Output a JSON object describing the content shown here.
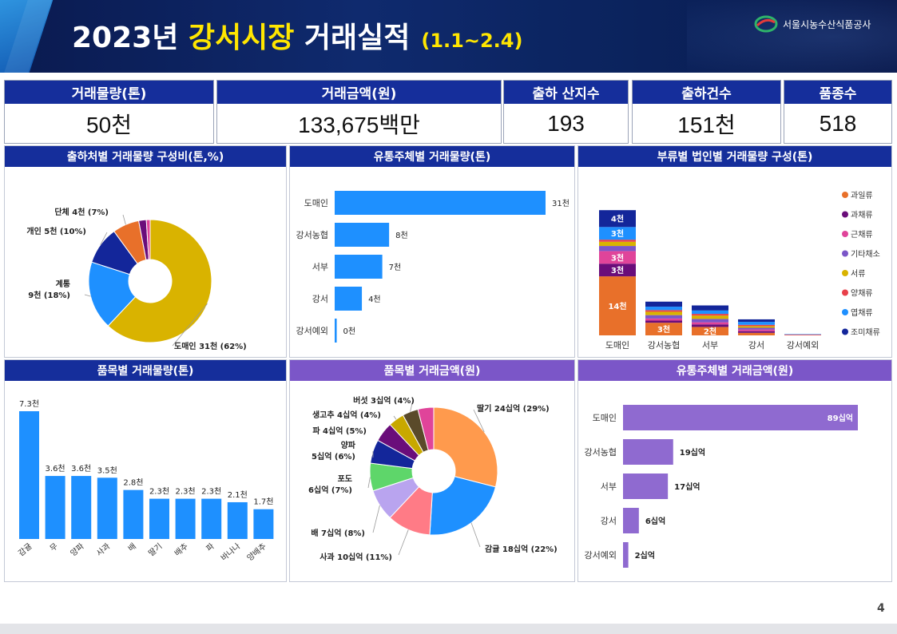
{
  "header": {
    "title_pre": "2023년 ",
    "title_highlight": "강서시장",
    "title_post": " 거래실적",
    "period": "(1.1~2.4)",
    "org": "서울시농수산식품공사"
  },
  "kpis": [
    {
      "label": "거래물량(톤)",
      "value": "50천"
    },
    {
      "label": "거래금액(원)",
      "value": "133,675백만"
    },
    {
      "label": "출하 산지수",
      "value": "193"
    },
    {
      "label": "출하건수",
      "value": "151천"
    },
    {
      "label": "품종수",
      "value": "518"
    }
  ],
  "panels": {
    "p1": "출하처별 거래물량 구성비(톤,%)",
    "p2": "유통주체별 거래물량(톤)",
    "p3": "부류별 법인별 거래물량 구성(톤)",
    "p4": "품목별 거래물량(톤)",
    "p5": "품목별 거래금액(원)",
    "p6": "유통주체별 거래금액(원)"
  },
  "colors": {
    "navy": "#152e9b",
    "purple": "#7b56c8",
    "bar_blue": "#1e90ff",
    "bar_purple": "#8f6ad0"
  },
  "chart_data": [
    {
      "id": "donut1",
      "type": "pie",
      "title": "출하처별 거래물량 구성비(톤,%)",
      "slices": [
        {
          "name": "도매인",
          "label": "도매인 31천 (62%)",
          "value": 62,
          "color": "#d9b300"
        },
        {
          "name": "계통",
          "label": "계통 9천 (18%)",
          "value": 18,
          "color": "#1e90ff"
        },
        {
          "name": "개인",
          "label": "개인 5천 (10%)",
          "value": 10,
          "color": "#13269a"
        },
        {
          "name": "단체",
          "label": "단체 4천 (7%)",
          "value": 7,
          "color": "#e8702a"
        },
        {
          "name": "기타1",
          "label": "",
          "value": 2,
          "color": "#6a0d7a"
        },
        {
          "name": "기타2",
          "label": "",
          "value": 1,
          "color": "#e0449a"
        }
      ]
    },
    {
      "id": "hbar1",
      "type": "bar",
      "orientation": "horizontal",
      "title": "유통주체별 거래물량(톤)",
      "categories": [
        "도매인",
        "강서농협",
        "서부",
        "강서",
        "강서예외"
      ],
      "values": [
        31,
        8,
        7,
        4,
        0.3
      ],
      "labels": [
        "31천",
        "8천",
        "7천",
        "4천",
        "0천"
      ],
      "max": 31
    },
    {
      "id": "stack1",
      "type": "bar",
      "stacked": true,
      "title": "부류별 법인별 거래물량 구성(톤)",
      "categories": [
        "도매인",
        "강서농협",
        "서부",
        "강서",
        "강서예외"
      ],
      "legend": [
        {
          "name": "과일류",
          "color": "#e8702a"
        },
        {
          "name": "과채류",
          "color": "#6a0d7a"
        },
        {
          "name": "근채류",
          "color": "#e0449a"
        },
        {
          "name": "기타채소",
          "color": "#7b56c8"
        },
        {
          "name": "서류",
          "color": "#d9b300"
        },
        {
          "name": "양채류",
          "color": "#e8404a"
        },
        {
          "name": "엽채류",
          "color": "#1e90ff"
        },
        {
          "name": "조미채류",
          "color": "#13269a"
        }
      ],
      "series": [
        {
          "name": "과일류",
          "values": [
            14,
            3,
            2,
            0.6,
            0.1
          ],
          "labels": [
            "14천",
            "3천",
            "2천",
            "",
            ""
          ]
        },
        {
          "name": "과채류",
          "values": [
            3,
            0.5,
            0.6,
            0.4,
            0
          ],
          "labels": [
            "3천",
            "",
            "",
            "",
            ""
          ]
        },
        {
          "name": "근채류",
          "values": [
            3,
            0.5,
            0.5,
            0.4,
            0.1
          ],
          "labels": [
            "3천",
            "",
            "",
            "",
            ""
          ]
        },
        {
          "name": "기타채소",
          "values": [
            1.2,
            0.8,
            0.8,
            0.4,
            0
          ],
          "labels": [
            "",
            "",
            "",
            "",
            ""
          ]
        },
        {
          "name": "서류",
          "values": [
            1.0,
            0.8,
            0.8,
            0.4,
            0
          ],
          "labels": [
            "",
            "",
            "",
            "",
            ""
          ]
        },
        {
          "name": "양채류",
          "values": [
            0.5,
            0.4,
            0.4,
            0.3,
            0
          ],
          "labels": [
            "",
            "",
            "",
            "",
            ""
          ]
        },
        {
          "name": "엽채류",
          "values": [
            3,
            0.8,
            0.8,
            0.7,
            0.1
          ],
          "labels": [
            "3천",
            "",
            "",
            "",
            ""
          ]
        },
        {
          "name": "조미채류",
          "values": [
            4,
            1.2,
            1.2,
            0.6,
            0
          ],
          "labels": [
            "4천",
            "",
            "",
            "",
            ""
          ]
        }
      ]
    },
    {
      "id": "vbar1",
      "type": "bar",
      "title": "품목별 거래물량(톤)",
      "categories": [
        "감귤",
        "무",
        "양파",
        "사과",
        "배",
        "딸기",
        "배추",
        "파",
        "바나나",
        "양배추"
      ],
      "values": [
        7.3,
        3.6,
        3.6,
        3.5,
        2.8,
        2.3,
        2.3,
        2.3,
        2.1,
        1.7
      ],
      "labels": [
        "7.3천",
        "3.6천",
        "3.6천",
        "3.5천",
        "2.8천",
        "2.3천",
        "2.3천",
        "2.3천",
        "2.1천",
        "1.7천"
      ],
      "max": 7.3
    },
    {
      "id": "donut2",
      "type": "pie",
      "title": "품목별 거래금액(원)",
      "slices": [
        {
          "name": "딸기",
          "label": "딸기 24십억 (29%)",
          "value": 29,
          "color": "#ff9a4d"
        },
        {
          "name": "감귤",
          "label": "감귤 18십억 (22%)",
          "value": 22,
          "color": "#1e90ff"
        },
        {
          "name": "사과",
          "label": "사과 10십억 (11%)",
          "value": 11,
          "color": "#ff7b86"
        },
        {
          "name": "배",
          "label": "배 7십억 (8%)",
          "value": 8,
          "color": "#b9a4ef"
        },
        {
          "name": "포도",
          "label": "포도 6십억 (7%)",
          "value": 7,
          "color": "#5ed66a"
        },
        {
          "name": "양파",
          "label": "양파 5십억 (6%)",
          "value": 6,
          "color": "#13269a"
        },
        {
          "name": "파",
          "label": "파 4십억 (5%)",
          "value": 5,
          "color": "#6a0d7a"
        },
        {
          "name": "생고추",
          "label": "생고추 4십억 (4%)",
          "value": 4,
          "color": "#c8a800"
        },
        {
          "name": "버섯",
          "label": "버섯 3십억 (4%)",
          "value": 4,
          "color": "#5a4a2a"
        },
        {
          "name": "기타",
          "label": "",
          "value": 4,
          "color": "#e0449a"
        }
      ]
    },
    {
      "id": "hbar2",
      "type": "bar",
      "orientation": "horizontal",
      "title": "유통주체별 거래금액(원)",
      "categories": [
        "도매인",
        "강서농협",
        "서부",
        "강서",
        "강서예외"
      ],
      "values": [
        89,
        19,
        17,
        6,
        2
      ],
      "labels": [
        "89십억",
        "19십억",
        "17십억",
        "6십억",
        "2십억"
      ],
      "max": 89
    }
  ],
  "page": {
    "number": "4"
  }
}
